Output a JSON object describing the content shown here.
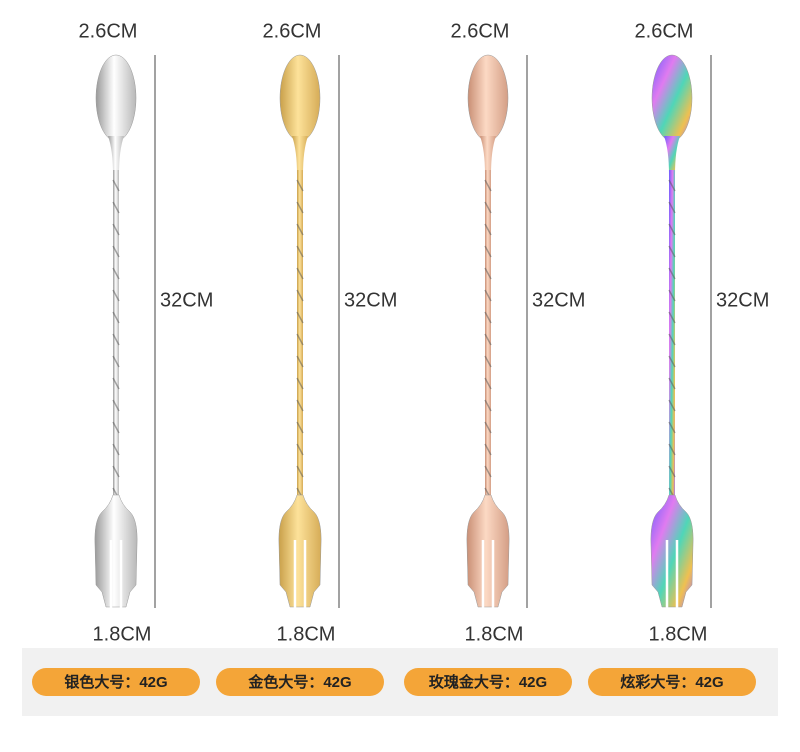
{
  "products": [
    {
      "top_width": "2.6CM",
      "length": "32CM",
      "bottom_width": "1.8CM",
      "label": "银色大号：42G"
    },
    {
      "top_width": "2.6CM",
      "length": "32CM",
      "bottom_width": "1.8CM",
      "label": "金色大号：42G"
    },
    {
      "top_width": "2.6CM",
      "length": "32CM",
      "bottom_width": "1.8CM",
      "label": "玫瑰金大号：42G"
    },
    {
      "top_width": "2.6CM",
      "length": "32CM",
      "bottom_width": "1.8CM",
      "label": "炫彩大号：42G"
    }
  ]
}
